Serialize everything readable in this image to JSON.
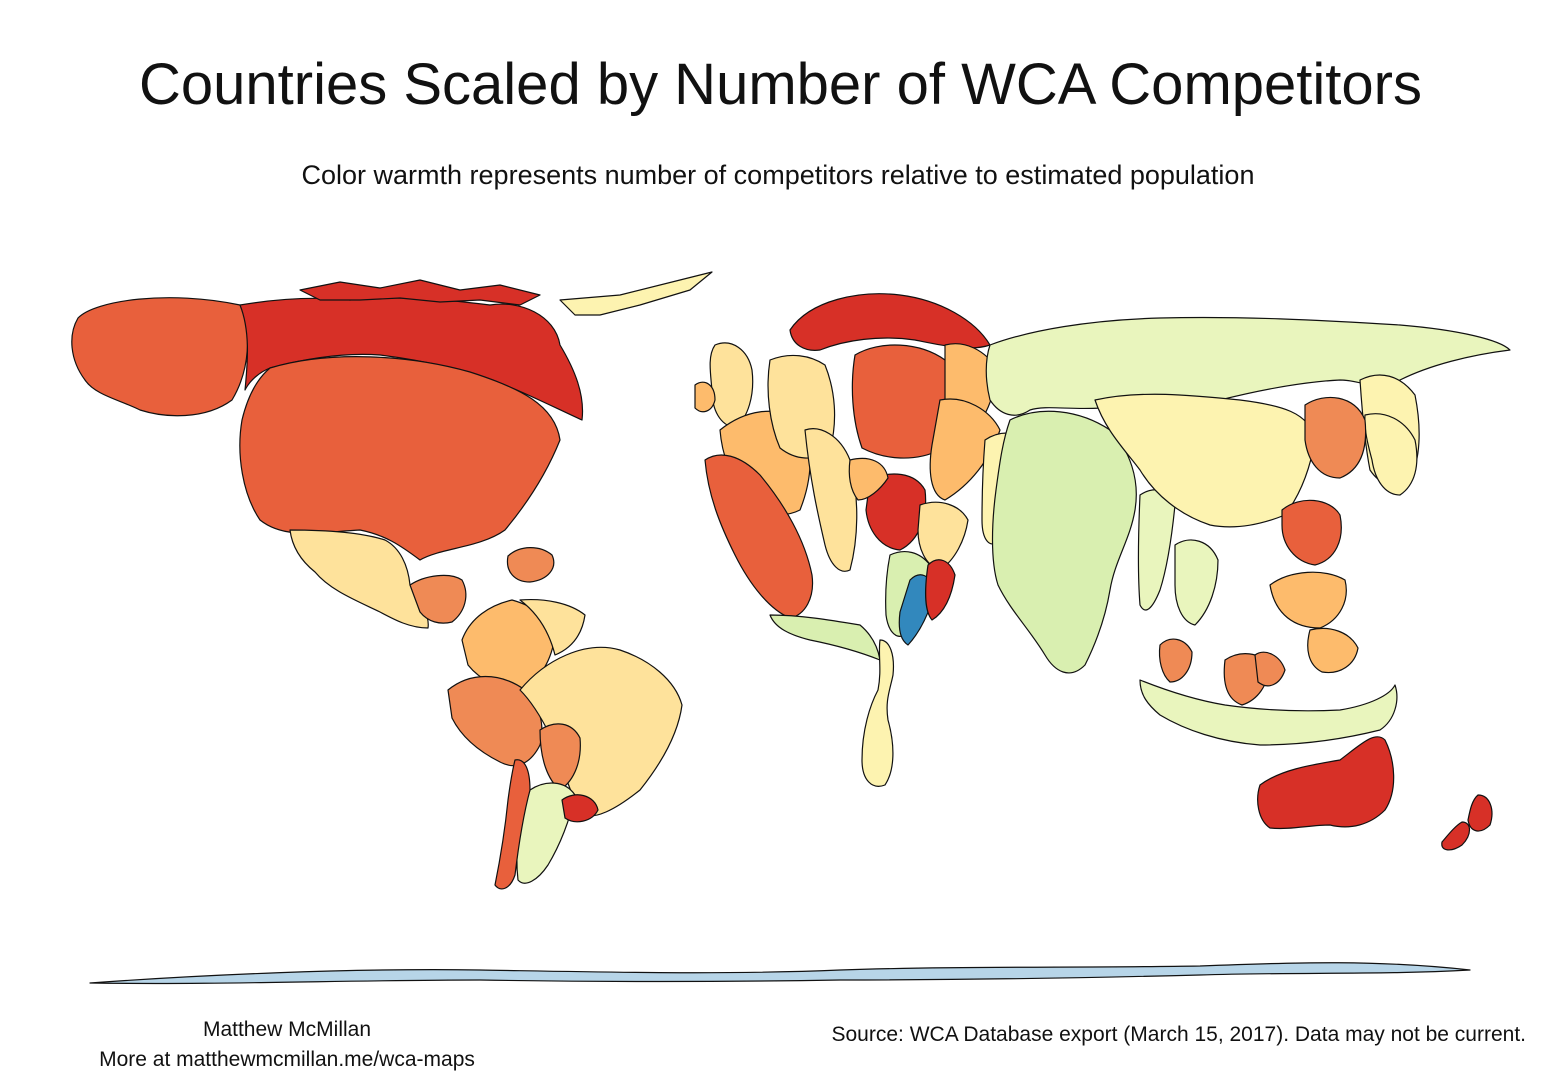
{
  "title": "Countries Scaled by Number of WCA Competitors",
  "subtitle": "Color warmth represents number of competitors relative to estimated population",
  "author": "Matthew McMillan",
  "more_at": "More at matthewmcmillan.me/wca-maps",
  "source": "Source: WCA Database export (March 15, 2017). Data may not be current.",
  "color_scale": {
    "very_high": "#d73027",
    "high": "#e8603c",
    "med_high": "#ef8a55",
    "medium": "#fdbb6c",
    "med_low": "#fee29b",
    "low": "#fdf3b0",
    "very_low": "#e9f5bd",
    "lowest": "#d9efb0",
    "minimal": "#3288bd"
  }
}
